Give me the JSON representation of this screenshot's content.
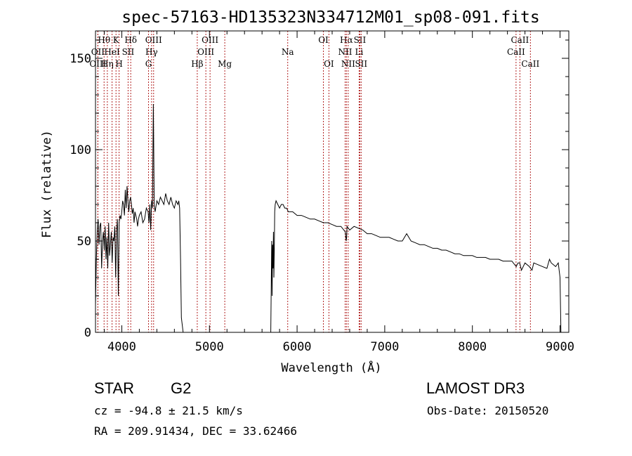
{
  "chart_data": {
    "type": "line",
    "title": "spec-57163-HD135323N334712M01_sp08-091.fits",
    "xlabel": "Wavelength (Å)",
    "ylabel": "Flux (relative)",
    "xlim": [
      3700,
      9100
    ],
    "ylim": [
      0,
      165
    ],
    "xticks": [
      4000,
      5000,
      6000,
      7000,
      8000,
      9000
    ],
    "yticks": [
      0,
      50,
      100,
      150
    ],
    "series": [
      {
        "name": "flux",
        "x": [
          3700,
          3710,
          3720,
          3730,
          3740,
          3750,
          3760,
          3770,
          3780,
          3790,
          3800,
          3810,
          3820,
          3830,
          3840,
          3850,
          3860,
          3870,
          3880,
          3890,
          3900,
          3910,
          3920,
          3930,
          3940,
          3950,
          3960,
          3970,
          3980,
          3990,
          4000,
          4010,
          4020,
          4030,
          4040,
          4050,
          4060,
          4070,
          4080,
          4090,
          4100,
          4110,
          4120,
          4130,
          4140,
          4150,
          4160,
          4170,
          4180,
          4190,
          4200,
          4220,
          4240,
          4260,
          4280,
          4300,
          4310,
          4320,
          4330,
          4340,
          4350,
          4360,
          4370,
          4380,
          4400,
          4420,
          4440,
          4460,
          4480,
          4500,
          4520,
          4540,
          4560,
          4580,
          4600,
          4620,
          4640,
          4650,
          4660,
          4670,
          4680,
          4700,
          5700,
          5710,
          5715,
          5720,
          5725,
          5730,
          5735,
          5740,
          5745,
          5750,
          5760,
          5780,
          5800,
          5820,
          5840,
          5860,
          5880,
          5900,
          5950,
          6000,
          6050,
          6100,
          6150,
          6200,
          6250,
          6300,
          6350,
          6400,
          6450,
          6500,
          6550,
          6560,
          6565,
          6570,
          6600,
          6650,
          6700,
          6750,
          6800,
          6850,
          6900,
          6950,
          7000,
          7050,
          7100,
          7150,
          7200,
          7250,
          7300,
          7350,
          7400,
          7450,
          7500,
          7550,
          7600,
          7650,
          7700,
          7750,
          7800,
          7850,
          7900,
          7950,
          8000,
          8050,
          8100,
          8150,
          8200,
          8250,
          8300,
          8350,
          8400,
          8450,
          8500,
          8520,
          8540,
          8560,
          8600,
          8650,
          8680,
          8700,
          8750,
          8800,
          8850,
          8880,
          8900,
          8950,
          8980,
          9000,
          9010
        ],
        "y": [
          15,
          40,
          55,
          62,
          48,
          58,
          60,
          35,
          50,
          55,
          45,
          58,
          40,
          52,
          35,
          60,
          42,
          48,
          55,
          38,
          52,
          50,
          58,
          30,
          55,
          62,
          20,
          60,
          64,
          62,
          66,
          72,
          70,
          64,
          78,
          68,
          80,
          72,
          66,
          72,
          74,
          70,
          65,
          68,
          60,
          66,
          64,
          62,
          58,
          62,
          64,
          66,
          60,
          62,
          68,
          66,
          60,
          70,
          56,
          72,
          68,
          125,
          70,
          66,
          72,
          70,
          74,
          72,
          70,
          76,
          72,
          70,
          74,
          70,
          68,
          72,
          70,
          72,
          68,
          40,
          8,
          0,
          0,
          50,
          20,
          48,
          35,
          55,
          30,
          45,
          66,
          70,
          72,
          70,
          68,
          70,
          70,
          68,
          68,
          66,
          66,
          64,
          64,
          63,
          62,
          62,
          61,
          60,
          60,
          59,
          58,
          58,
          55,
          50,
          52,
          58,
          56,
          58,
          57,
          56,
          54,
          54,
          53,
          52,
          52,
          52,
          51,
          50,
          50,
          54,
          50,
          49,
          48,
          48,
          47,
          46,
          46,
          45,
          45,
          44,
          43,
          43,
          42,
          42,
          42,
          41,
          41,
          41,
          40,
          40,
          40,
          39,
          39,
          39,
          36,
          38,
          38,
          34,
          38,
          36,
          34,
          38,
          37,
          36,
          35,
          40,
          38,
          36,
          38,
          30,
          0
        ]
      }
    ],
    "lines": [
      {
        "label": "Hθ",
        "wl": 3798,
        "row": 1
      },
      {
        "label": "OII",
        "wl": 3727,
        "row": 2
      },
      {
        "label": "OIII",
        "wl": 3727,
        "row": 3
      },
      {
        "label": "K",
        "wl": 3934,
        "row": 1
      },
      {
        "label": "HeI",
        "wl": 3889,
        "row": 2
      },
      {
        "label": "Hη",
        "wl": 3835,
        "row": 3
      },
      {
        "label": "Hδ",
        "wl": 4102,
        "row": 1
      },
      {
        "label": "SII",
        "wl": 4072,
        "row": 2
      },
      {
        "label": "H",
        "wl": 3969,
        "row": 3
      },
      {
        "label": "OIII",
        "wl": 4363,
        "row": 1
      },
      {
        "label": "Hγ",
        "wl": 4340,
        "row": 2
      },
      {
        "label": "G",
        "wl": 4305,
        "row": 3
      },
      {
        "label": "OIII",
        "wl": 5007,
        "row": 1
      },
      {
        "label": "OIII",
        "wl": 4959,
        "row": 2
      },
      {
        "label": "Hβ",
        "wl": 4861,
        "row": 3
      },
      {
        "label": "Mg",
        "wl": 5175,
        "row": 3
      },
      {
        "label": "Na",
        "wl": 5893,
        "row": 2
      },
      {
        "label": "OI",
        "wl": 6300,
        "row": 1
      },
      {
        "label": "OI",
        "wl": 6363,
        "row": 3
      },
      {
        "label": "Hα",
        "wl": 6563,
        "row": 1
      },
      {
        "label": "NII",
        "wl": 6548,
        "row": 2
      },
      {
        "label": "NII",
        "wl": 6583,
        "row": 3
      },
      {
        "label": "SII",
        "wl": 6716,
        "row": 1
      },
      {
        "label": "Li",
        "wl": 6708,
        "row": 2
      },
      {
        "label": "SII",
        "wl": 6731,
        "row": 3
      },
      {
        "label": "CaII",
        "wl": 8542,
        "row": 1
      },
      {
        "label": "CaII",
        "wl": 8498,
        "row": 2
      },
      {
        "label": "CaII",
        "wl": 8662,
        "row": 3
      }
    ],
    "line_color": "#b22222"
  },
  "info": {
    "class": "STAR",
    "subclass": "G2",
    "survey": "LAMOST DR3",
    "cz": "cz = -94.8 ± 21.5 km/s",
    "obsdate": "Obs-Date: 20150520",
    "radec": "RA = 209.91434, DEC =  33.62466"
  }
}
